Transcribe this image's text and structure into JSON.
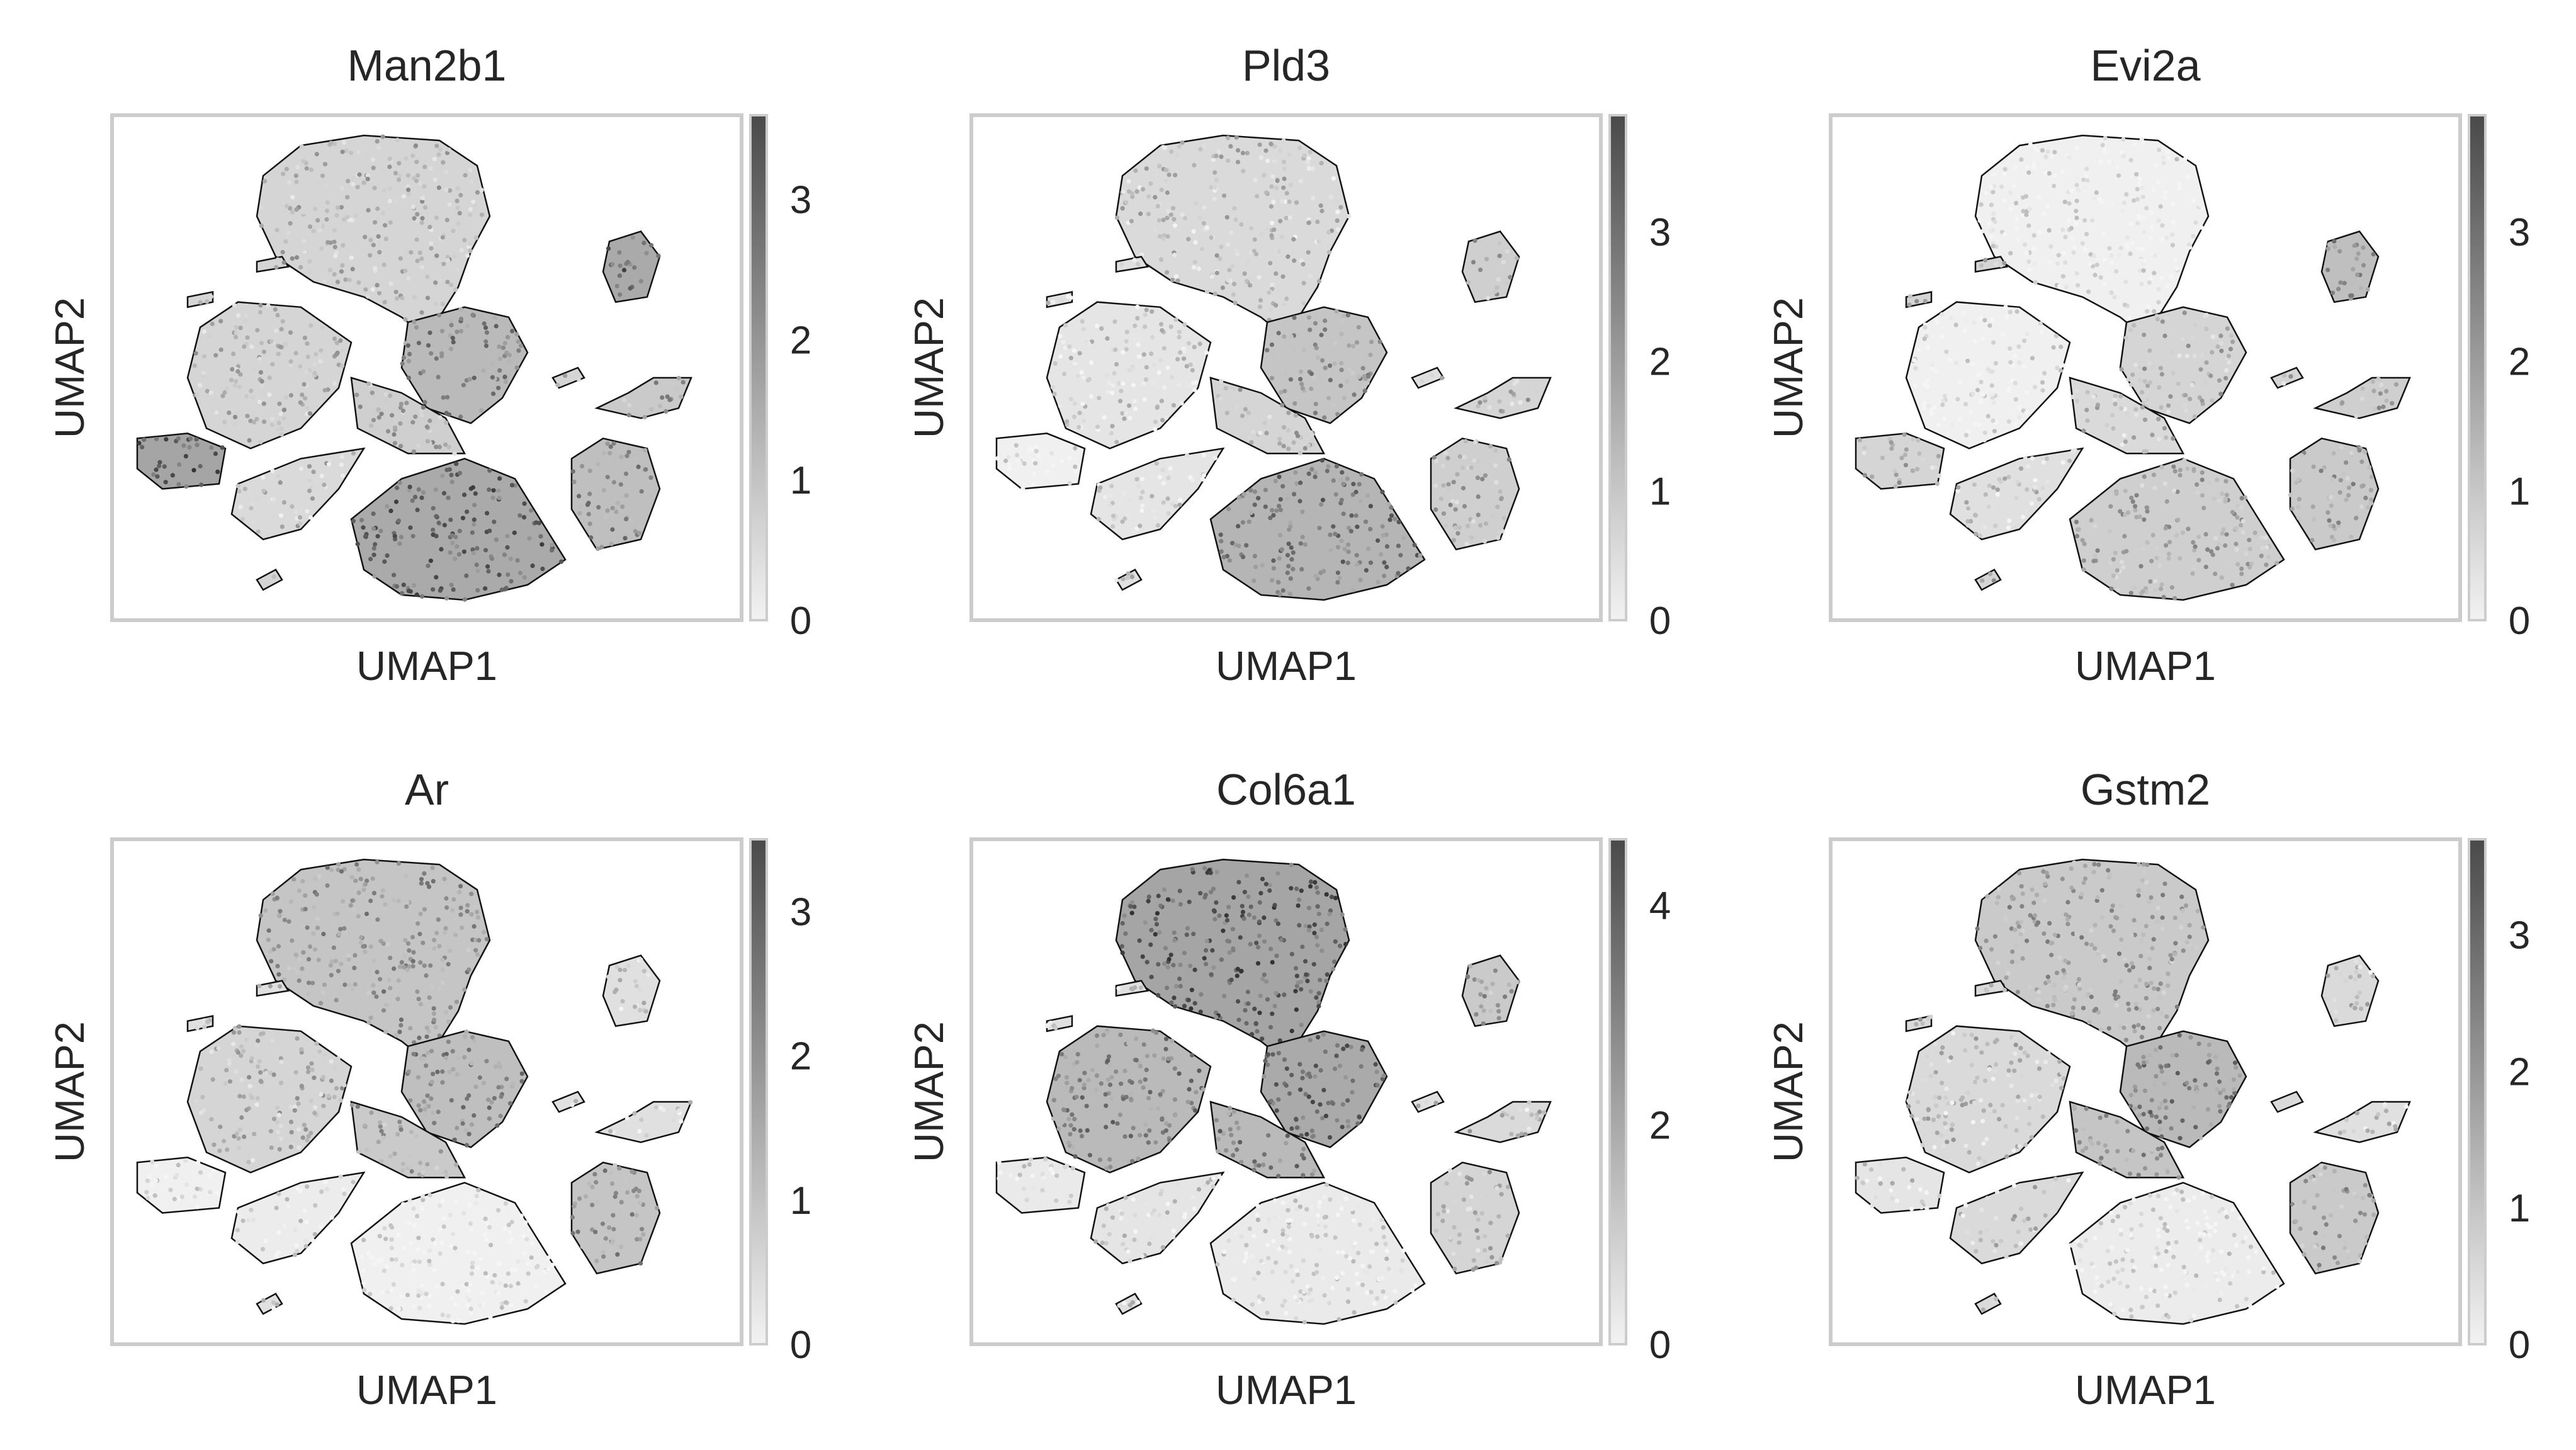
{
  "chart_data": [
    {
      "type": "scatter",
      "title": "Man2b1",
      "xlabel": "UMAP1",
      "ylabel": "UMAP2",
      "colorbar": {
        "ticks": [
          0,
          1,
          2,
          3
        ],
        "max": 3.6,
        "ticklabels": [
          "0",
          "1",
          "2",
          "3"
        ]
      },
      "expression": {
        "top": 0.3,
        "left": 0.3,
        "right": 0.35,
        "crossmid": 0.55,
        "lowerleft": 0.25,
        "bottom": 0.7,
        "farleft": 0.75,
        "rightupper": 0.7,
        "rightmid": 0.4,
        "rightlower": 0.5,
        "smallislands": 0.3
      }
    },
    {
      "type": "scatter",
      "title": "Pld3",
      "xlabel": "UMAP1",
      "ylabel": "UMAP2",
      "colorbar": {
        "ticks": [
          0,
          1,
          2,
          3
        ],
        "max": 3.9,
        "ticklabels": [
          "0",
          "1",
          "2",
          "3"
        ]
      },
      "expression": {
        "top": 0.25,
        "left": 0.15,
        "right": 0.3,
        "crossmid": 0.45,
        "lowerleft": 0.15,
        "bottom": 0.6,
        "farleft": 0.05,
        "rightupper": 0.35,
        "rightmid": 0.3,
        "rightlower": 0.35,
        "smallislands": 0.2
      }
    },
    {
      "type": "scatter",
      "title": "Evi2a",
      "xlabel": "UMAP1",
      "ylabel": "UMAP2",
      "colorbar": {
        "ticks": [
          0,
          1,
          2,
          3
        ],
        "max": 3.9,
        "ticklabels": [
          "0",
          "1",
          "2",
          "3"
        ]
      },
      "expression": {
        "top": 0.05,
        "left": 0.05,
        "right": 0.25,
        "crossmid": 0.3,
        "lowerleft": 0.2,
        "bottom": 0.35,
        "farleft": 0.3,
        "rightupper": 0.5,
        "rightmid": 0.35,
        "rightlower": 0.4,
        "smallislands": 0.3
      }
    },
    {
      "type": "scatter",
      "title": "Ar",
      "xlabel": "UMAP1",
      "ylabel": "UMAP2",
      "colorbar": {
        "ticks": [
          0,
          1,
          2,
          3
        ],
        "max": 3.5,
        "ticklabels": [
          "0",
          "1",
          "2",
          "3"
        ]
      },
      "expression": {
        "top": 0.45,
        "left": 0.3,
        "right": 0.4,
        "crossmid": 0.5,
        "lowerleft": 0.08,
        "bottom": 0.05,
        "farleft": 0.05,
        "rightupper": 0.2,
        "rightmid": 0.2,
        "rightlower": 0.45,
        "smallislands": 0.2
      }
    },
    {
      "type": "scatter",
      "title": "Col6a1",
      "xlabel": "UMAP1",
      "ylabel": "UMAP2",
      "colorbar": {
        "ticks": [
          0,
          2,
          4
        ],
        "max": 4.6,
        "ticklabels": [
          "0",
          "2",
          "4"
        ]
      },
      "expression": {
        "top": 0.75,
        "left": 0.55,
        "right": 0.55,
        "crossmid": 0.7,
        "lowerleft": 0.15,
        "bottom": 0.1,
        "farleft": 0.1,
        "rightupper": 0.4,
        "rightmid": 0.25,
        "rightlower": 0.3,
        "smallislands": 0.2
      }
    },
    {
      "type": "scatter",
      "title": "Gstm2",
      "xlabel": "UMAP1",
      "ylabel": "UMAP2",
      "colorbar": {
        "ticks": [
          0,
          1,
          2,
          3
        ],
        "max": 3.7,
        "ticklabels": [
          "0",
          "1",
          "2",
          "3"
        ]
      },
      "expression": {
        "top": 0.4,
        "left": 0.25,
        "right": 0.45,
        "crossmid": 0.55,
        "lowerleft": 0.25,
        "bottom": 0.08,
        "farleft": 0.15,
        "rightupper": 0.25,
        "rightmid": 0.2,
        "rightlower": 0.4,
        "smallislands": 0.25
      }
    }
  ]
}
